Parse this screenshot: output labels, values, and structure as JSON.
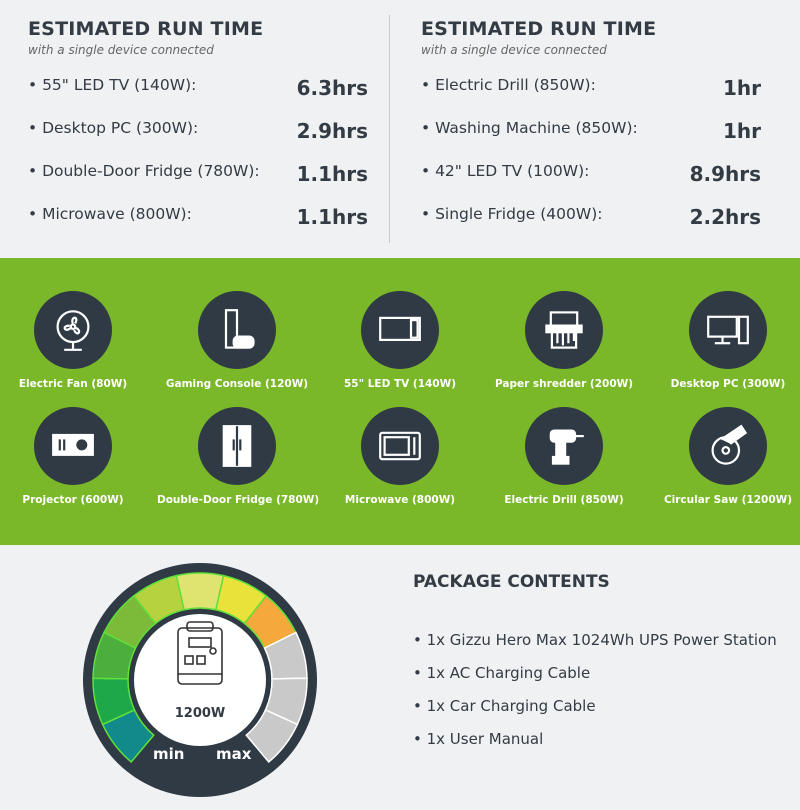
{
  "runtime_left": {
    "title": "ESTIMATED RUN TIME",
    "subtitle": "with a single device connected",
    "items": [
      {
        "label": "•  55\" LED TV (140W):",
        "value": "6.3hrs"
      },
      {
        "label": "•  Desktop PC (300W):",
        "value": "2.9hrs"
      },
      {
        "label": "•  Double-Door Fridge (780W):",
        "value": "1.1hrs"
      },
      {
        "label": "•  Microwave (800W):",
        "value": "1.1hrs"
      }
    ]
  },
  "runtime_right": {
    "title": "ESTIMATED RUN TIME",
    "subtitle": "with a single device connected",
    "items": [
      {
        "label": "•  Electric Drill (850W):",
        "value": "1hr"
      },
      {
        "label": "•  Washing Machine (850W):",
        "value": "1hr"
      },
      {
        "label": "•  42\" LED TV (100W):",
        "value": "8.9hrs"
      },
      {
        "label": "•  Single Fridge (400W):",
        "value": "2.2hrs"
      }
    ]
  },
  "devices": [
    {
      "name": "Electric Fan (80W)",
      "icon": "fan-icon"
    },
    {
      "name": "Gaming Console (120W)",
      "icon": "console-icon"
    },
    {
      "name": "55\" LED TV (140W)",
      "icon": "tv-icon"
    },
    {
      "name": "Paper shredder (200W)",
      "icon": "shredder-icon"
    },
    {
      "name": "Desktop PC (300W)",
      "icon": "desktop-pc-icon"
    },
    {
      "name": "Projector (600W)",
      "icon": "projector-icon"
    },
    {
      "name": "Double-Door Fridge (780W)",
      "icon": "fridge-icon"
    },
    {
      "name": "Microwave (800W)",
      "icon": "microwave-icon"
    },
    {
      "name": "Electric Drill (850W)",
      "icon": "drill-icon"
    },
    {
      "name": "Circular Saw (1200W)",
      "icon": "circular-saw-icon"
    }
  ],
  "gauge": {
    "center_label": "1200W",
    "min_label": "min",
    "max_label": "max",
    "segment_colors": [
      "#12898a",
      "#1ea84a",
      "#4cae3c",
      "#7cba3a",
      "#b6d23e",
      "#dfe470",
      "#e8e23a",
      "#f4a93a",
      "#c9c9c9",
      "#c9c9c9",
      "#c9c9c9"
    ],
    "level_segments": 8
  },
  "package": {
    "title": "PACKAGE CONTENTS",
    "items": [
      "•  1x Gizzu Hero Max 1024Wh UPS Power Station",
      "•  1x AC Charging Cable",
      "•  1x Car Charging Cable",
      "•  1x User Manual"
    ]
  },
  "colors": {
    "brand_green": "#7bb829",
    "dark": "#2f3a44"
  }
}
